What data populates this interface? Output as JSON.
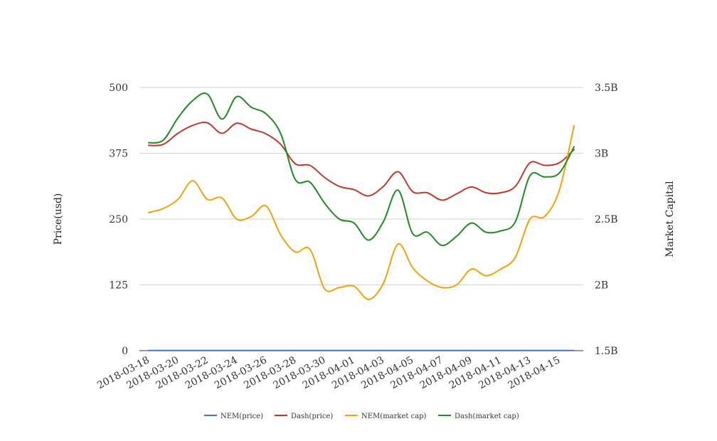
{
  "chart_data": {
    "type": "line",
    "title": "",
    "ylabel_left": "Price(usd)",
    "ylabel_right": "Market Capital",
    "ylim_left": [
      0,
      500
    ],
    "ylim_right": [
      1500000000,
      3500000000
    ],
    "yticks_left": [
      "0",
      "125",
      "250",
      "375",
      "500"
    ],
    "yticks_right": [
      "1.5B",
      "2B",
      "2.5B",
      "3B",
      "3.5B"
    ],
    "x_tick_labels": [
      "2018-03-18",
      "2018-03-20",
      "2018-03-22",
      "2018-03-24",
      "2018-03-26",
      "2018-03-28",
      "2018-03-30",
      "2018-04-01",
      "2018-04-03",
      "2018-04-05",
      "2018-04-07",
      "2018-04-09",
      "2018-04-11",
      "2018-04-13",
      "2018-04-15"
    ],
    "x": [
      "2018-03-18",
      "2018-03-19",
      "2018-03-20",
      "2018-03-21",
      "2018-03-22",
      "2018-03-23",
      "2018-03-24",
      "2018-03-25",
      "2018-03-26",
      "2018-03-27",
      "2018-03-28",
      "2018-03-29",
      "2018-03-30",
      "2018-03-31",
      "2018-04-01",
      "2018-04-02",
      "2018-04-03",
      "2018-04-04",
      "2018-04-05",
      "2018-04-06",
      "2018-04-07",
      "2018-04-08",
      "2018-04-09",
      "2018-04-10",
      "2018-04-11",
      "2018-04-12",
      "2018-04-13",
      "2018-04-14",
      "2018-04-15",
      "2018-04-16"
    ],
    "grid": true,
    "legend_position": "bottom",
    "series": [
      {
        "name": "NEM(price)",
        "axis": "left",
        "color": "#4472C4",
        "values": [
          0.36,
          0.36,
          0.37,
          0.38,
          0.39,
          0.37,
          0.38,
          0.37,
          0.37,
          0.35,
          0.32,
          0.32,
          0.28,
          0.25,
          0.25,
          0.23,
          0.25,
          0.3,
          0.27,
          0.24,
          0.23,
          0.24,
          0.26,
          0.24,
          0.25,
          0.28,
          0.33,
          0.33,
          0.38,
          0.44
        ]
      },
      {
        "name": "Dash(price)",
        "axis": "left",
        "color": "#C0392B",
        "values": [
          390,
          392,
          413,
          428,
          433,
          413,
          432,
          421,
          412,
          392,
          355,
          352,
          329,
          312,
          306,
          294,
          312,
          340,
          302,
          300,
          286,
          298,
          311,
          300,
          300,
          312,
          357,
          352,
          357,
          382
        ]
      },
      {
        "name": "NEM(market cap)",
        "axis": "right",
        "color": "#F0A30A",
        "values": [
          2550000000,
          2580000000,
          2650000000,
          2790000000,
          2650000000,
          2660000000,
          2500000000,
          2520000000,
          2600000000,
          2380000000,
          2250000000,
          2270000000,
          1970000000,
          1980000000,
          1990000000,
          1890000000,
          2010000000,
          2310000000,
          2130000000,
          2030000000,
          1980000000,
          2000000000,
          2120000000,
          2070000000,
          2120000000,
          2210000000,
          2500000000,
          2520000000,
          2720000000,
          3210000000
        ]
      },
      {
        "name": "Dash(market cap)",
        "axis": "right",
        "color": "#1E8C1E",
        "values": [
          3080000000,
          3100000000,
          3270000000,
          3400000000,
          3450000000,
          3260000000,
          3430000000,
          3350000000,
          3300000000,
          3150000000,
          2800000000,
          2780000000,
          2620000000,
          2500000000,
          2470000000,
          2340000000,
          2480000000,
          2720000000,
          2390000000,
          2400000000,
          2300000000,
          2370000000,
          2470000000,
          2400000000,
          2410000000,
          2480000000,
          2830000000,
          2820000000,
          2850000000,
          3050000000
        ]
      }
    ]
  }
}
